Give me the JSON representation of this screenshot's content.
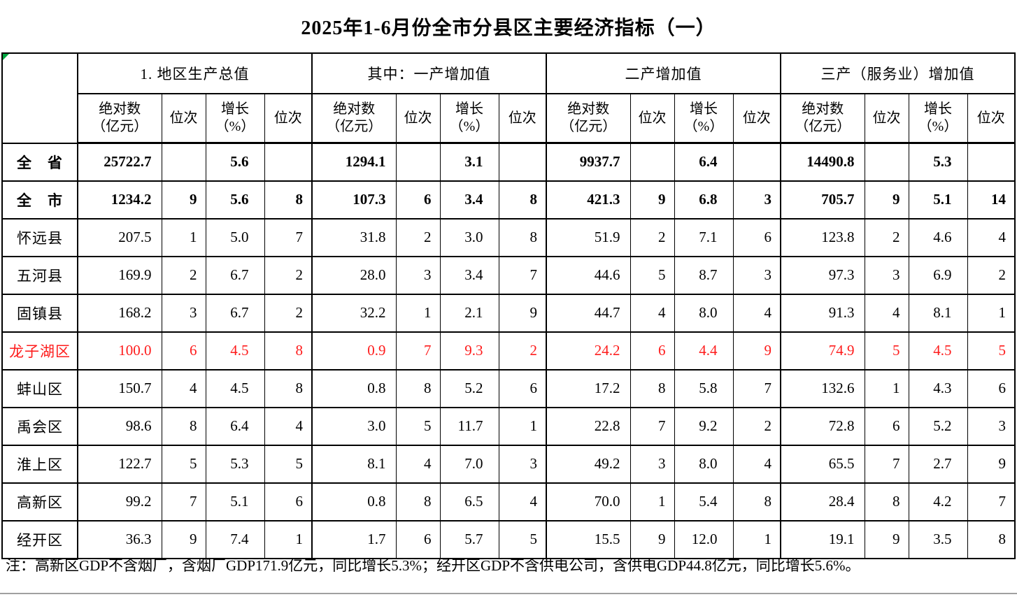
{
  "title": "2025年1-6月份全市分县区主要经济指标（一）",
  "footnote": "注：高新区GDP不含烟厂，含烟厂GDP171.9亿元，同比增长5.3%；经开区GDP不含供电公司，含供电GDP44.8亿元，同比增长5.6%。",
  "colors": {
    "text": "#000000",
    "highlight_row": "#fe1c1c",
    "border": "#000000",
    "corner_flag": "#00a640",
    "bottom_rule": "#a0a0a0"
  },
  "table": {
    "groups": [
      {
        "label": "1. 地区生产总值"
      },
      {
        "label": "其中：一产增加值"
      },
      {
        "label": "二产增加值"
      },
      {
        "label": "三产（服务业）增加值"
      }
    ],
    "subheader_cells": [
      "绝对数\n（亿元）",
      "位次",
      "增长\n（%）",
      "位次",
      "绝对数\n（亿元）",
      "位次",
      "增长\n（%）",
      "位次",
      "绝对数\n（亿元）",
      "位次",
      "增长\n（%）",
      "位次",
      "绝对数\n（亿元）",
      "位次",
      "增长\n（%）",
      "位次"
    ],
    "rows": [
      {
        "label": "全　省",
        "bold": true,
        "red": false,
        "values": [
          "25722.7",
          "",
          "5.6",
          "",
          "1294.1",
          "",
          "3.1",
          "",
          "9937.7",
          "",
          "6.4",
          "",
          "14490.8",
          "",
          "5.3",
          ""
        ]
      },
      {
        "label": "全　市",
        "bold": true,
        "red": false,
        "values": [
          "1234.2",
          "9",
          "5.6",
          "8",
          "107.3",
          "6",
          "3.4",
          "8",
          "421.3",
          "9",
          "6.8",
          "3",
          "705.7",
          "9",
          "5.1",
          "14"
        ]
      },
      {
        "label": "怀远县",
        "bold": false,
        "red": false,
        "values": [
          "207.5",
          "1",
          "5.0",
          "7",
          "31.8",
          "2",
          "3.0",
          "8",
          "51.9",
          "2",
          "7.1",
          "6",
          "123.8",
          "2",
          "4.6",
          "4"
        ]
      },
      {
        "label": "五河县",
        "bold": false,
        "red": false,
        "values": [
          "169.9",
          "2",
          "6.7",
          "2",
          "28.0",
          "3",
          "3.4",
          "7",
          "44.6",
          "5",
          "8.7",
          "3",
          "97.3",
          "3",
          "6.9",
          "2"
        ]
      },
      {
        "label": "固镇县",
        "bold": false,
        "red": false,
        "values": [
          "168.2",
          "3",
          "6.7",
          "2",
          "32.2",
          "1",
          "2.1",
          "9",
          "44.7",
          "4",
          "8.0",
          "4",
          "91.3",
          "4",
          "8.1",
          "1"
        ]
      },
      {
        "label": "龙子湖区",
        "bold": false,
        "red": true,
        "values": [
          "100.0",
          "6",
          "4.5",
          "8",
          "0.9",
          "7",
          "9.3",
          "2",
          "24.2",
          "6",
          "4.4",
          "9",
          "74.9",
          "5",
          "4.5",
          "5"
        ]
      },
      {
        "label": "蚌山区",
        "bold": false,
        "red": false,
        "values": [
          "150.7",
          "4",
          "4.5",
          "8",
          "0.8",
          "8",
          "5.2",
          "6",
          "17.2",
          "8",
          "5.8",
          "7",
          "132.6",
          "1",
          "4.3",
          "6"
        ]
      },
      {
        "label": "禹会区",
        "bold": false,
        "red": false,
        "values": [
          "98.6",
          "8",
          "6.4",
          "4",
          "3.0",
          "5",
          "11.7",
          "1",
          "22.8",
          "7",
          "9.2",
          "2",
          "72.8",
          "6",
          "5.2",
          "3"
        ]
      },
      {
        "label": "淮上区",
        "bold": false,
        "red": false,
        "values": [
          "122.7",
          "5",
          "5.3",
          "5",
          "8.1",
          "4",
          "7.0",
          "3",
          "49.2",
          "3",
          "8.0",
          "4",
          "65.5",
          "7",
          "2.7",
          "9"
        ]
      },
      {
        "label": "高新区",
        "bold": false,
        "red": false,
        "values": [
          "99.2",
          "7",
          "5.1",
          "6",
          "0.8",
          "8",
          "6.5",
          "4",
          "70.0",
          "1",
          "5.4",
          "8",
          "28.4",
          "8",
          "4.2",
          "7"
        ]
      },
      {
        "label": "经开区",
        "bold": false,
        "red": false,
        "values": [
          "36.3",
          "9",
          "7.4",
          "1",
          "1.7",
          "6",
          "5.7",
          "5",
          "15.5",
          "9",
          "12.0",
          "1",
          "19.1",
          "9",
          "3.5",
          "8"
        ]
      }
    ]
  }
}
